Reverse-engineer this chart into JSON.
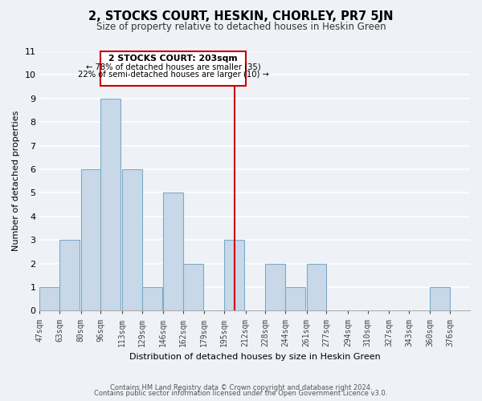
{
  "title": "2, STOCKS COURT, HESKIN, CHORLEY, PR7 5JN",
  "subtitle": "Size of property relative to detached houses in Heskin Green",
  "xlabel": "Distribution of detached houses by size in Heskin Green",
  "ylabel": "Number of detached properties",
  "bar_color": "#c8d8e8",
  "bar_edge_color": "#7aaac8",
  "bin_labels": [
    "47sqm",
    "63sqm",
    "80sqm",
    "96sqm",
    "113sqm",
    "129sqm",
    "146sqm",
    "162sqm",
    "179sqm",
    "195sqm",
    "212sqm",
    "228sqm",
    "244sqm",
    "261sqm",
    "277sqm",
    "294sqm",
    "310sqm",
    "327sqm",
    "343sqm",
    "360sqm",
    "376sqm"
  ],
  "bin_edges": [
    47,
    63,
    80,
    96,
    113,
    129,
    146,
    162,
    179,
    195,
    212,
    228,
    244,
    261,
    277,
    294,
    310,
    327,
    343,
    360,
    376
  ],
  "counts": [
    1,
    3,
    6,
    9,
    6,
    1,
    5,
    2,
    0,
    3,
    0,
    2,
    1,
    2,
    0,
    0,
    0,
    0,
    0,
    1,
    0
  ],
  "ylim": [
    0,
    11
  ],
  "yticks": [
    0,
    1,
    2,
    3,
    4,
    5,
    6,
    7,
    8,
    9,
    10,
    11
  ],
  "property_value": 203,
  "annotation_title": "2 STOCKS COURT: 203sqm",
  "annotation_line1": "← 78% of detached houses are smaller (35)",
  "annotation_line2": "22% of semi-detached houses are larger (10) →",
  "annotation_box_color": "#ffffff",
  "annotation_border_color": "#cc0000",
  "vline_color": "#cc0000",
  "footer_line1": "Contains HM Land Registry data © Crown copyright and database right 2024.",
  "footer_line2": "Contains public sector information licensed under the Open Government Licence v3.0.",
  "background_color": "#eef2f7",
  "grid_color": "#ffffff",
  "title_fontsize": 10.5,
  "subtitle_fontsize": 8.5,
  "ylabel_fontsize": 8,
  "xlabel_fontsize": 8,
  "tick_fontsize": 7,
  "footer_fontsize": 6
}
